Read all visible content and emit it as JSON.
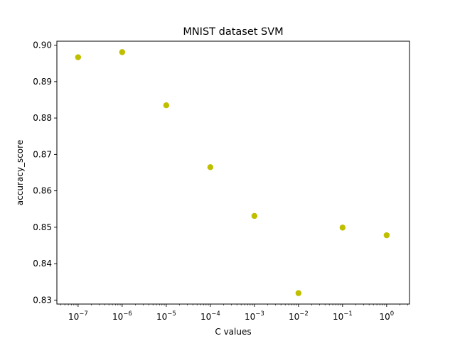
{
  "chart_data": {
    "type": "scatter",
    "title": "MNIST dataset SVM",
    "xlabel": "C values",
    "ylabel": "accuracy_score",
    "x_scale": "log",
    "x": [
      1e-07,
      1e-06,
      1e-05,
      0.0001,
      0.001,
      0.01,
      0.1,
      1
    ],
    "y": [
      0.8967,
      0.8981,
      0.8835,
      0.8665,
      0.8531,
      0.8319,
      0.8499,
      0.8478
    ],
    "xlim": [
      3.3e-08,
      3.3
    ],
    "ylim": [
      0.8289,
      0.9011
    ],
    "x_ticks": [
      {
        "value": 1e-07,
        "base": "10",
        "exp": "−7"
      },
      {
        "value": 1e-06,
        "base": "10",
        "exp": "−6"
      },
      {
        "value": 1e-05,
        "base": "10",
        "exp": "−5"
      },
      {
        "value": 0.0001,
        "base": "10",
        "exp": "−4"
      },
      {
        "value": 0.001,
        "base": "10",
        "exp": "−3"
      },
      {
        "value": 0.01,
        "base": "10",
        "exp": "−2"
      },
      {
        "value": 0.1,
        "base": "10",
        "exp": "−1"
      },
      {
        "value": 1,
        "base": "10",
        "exp": "0"
      }
    ],
    "y_ticks": [
      {
        "value": 0.83,
        "label": "0.83"
      },
      {
        "value": 0.84,
        "label": "0.84"
      },
      {
        "value": 0.85,
        "label": "0.85"
      },
      {
        "value": 0.86,
        "label": "0.86"
      },
      {
        "value": 0.87,
        "label": "0.87"
      },
      {
        "value": 0.88,
        "label": "0.88"
      },
      {
        "value": 0.89,
        "label": "0.89"
      },
      {
        "value": 0.9,
        "label": "0.90"
      }
    ],
    "grid": false,
    "marker_color": "#bfbf00"
  }
}
